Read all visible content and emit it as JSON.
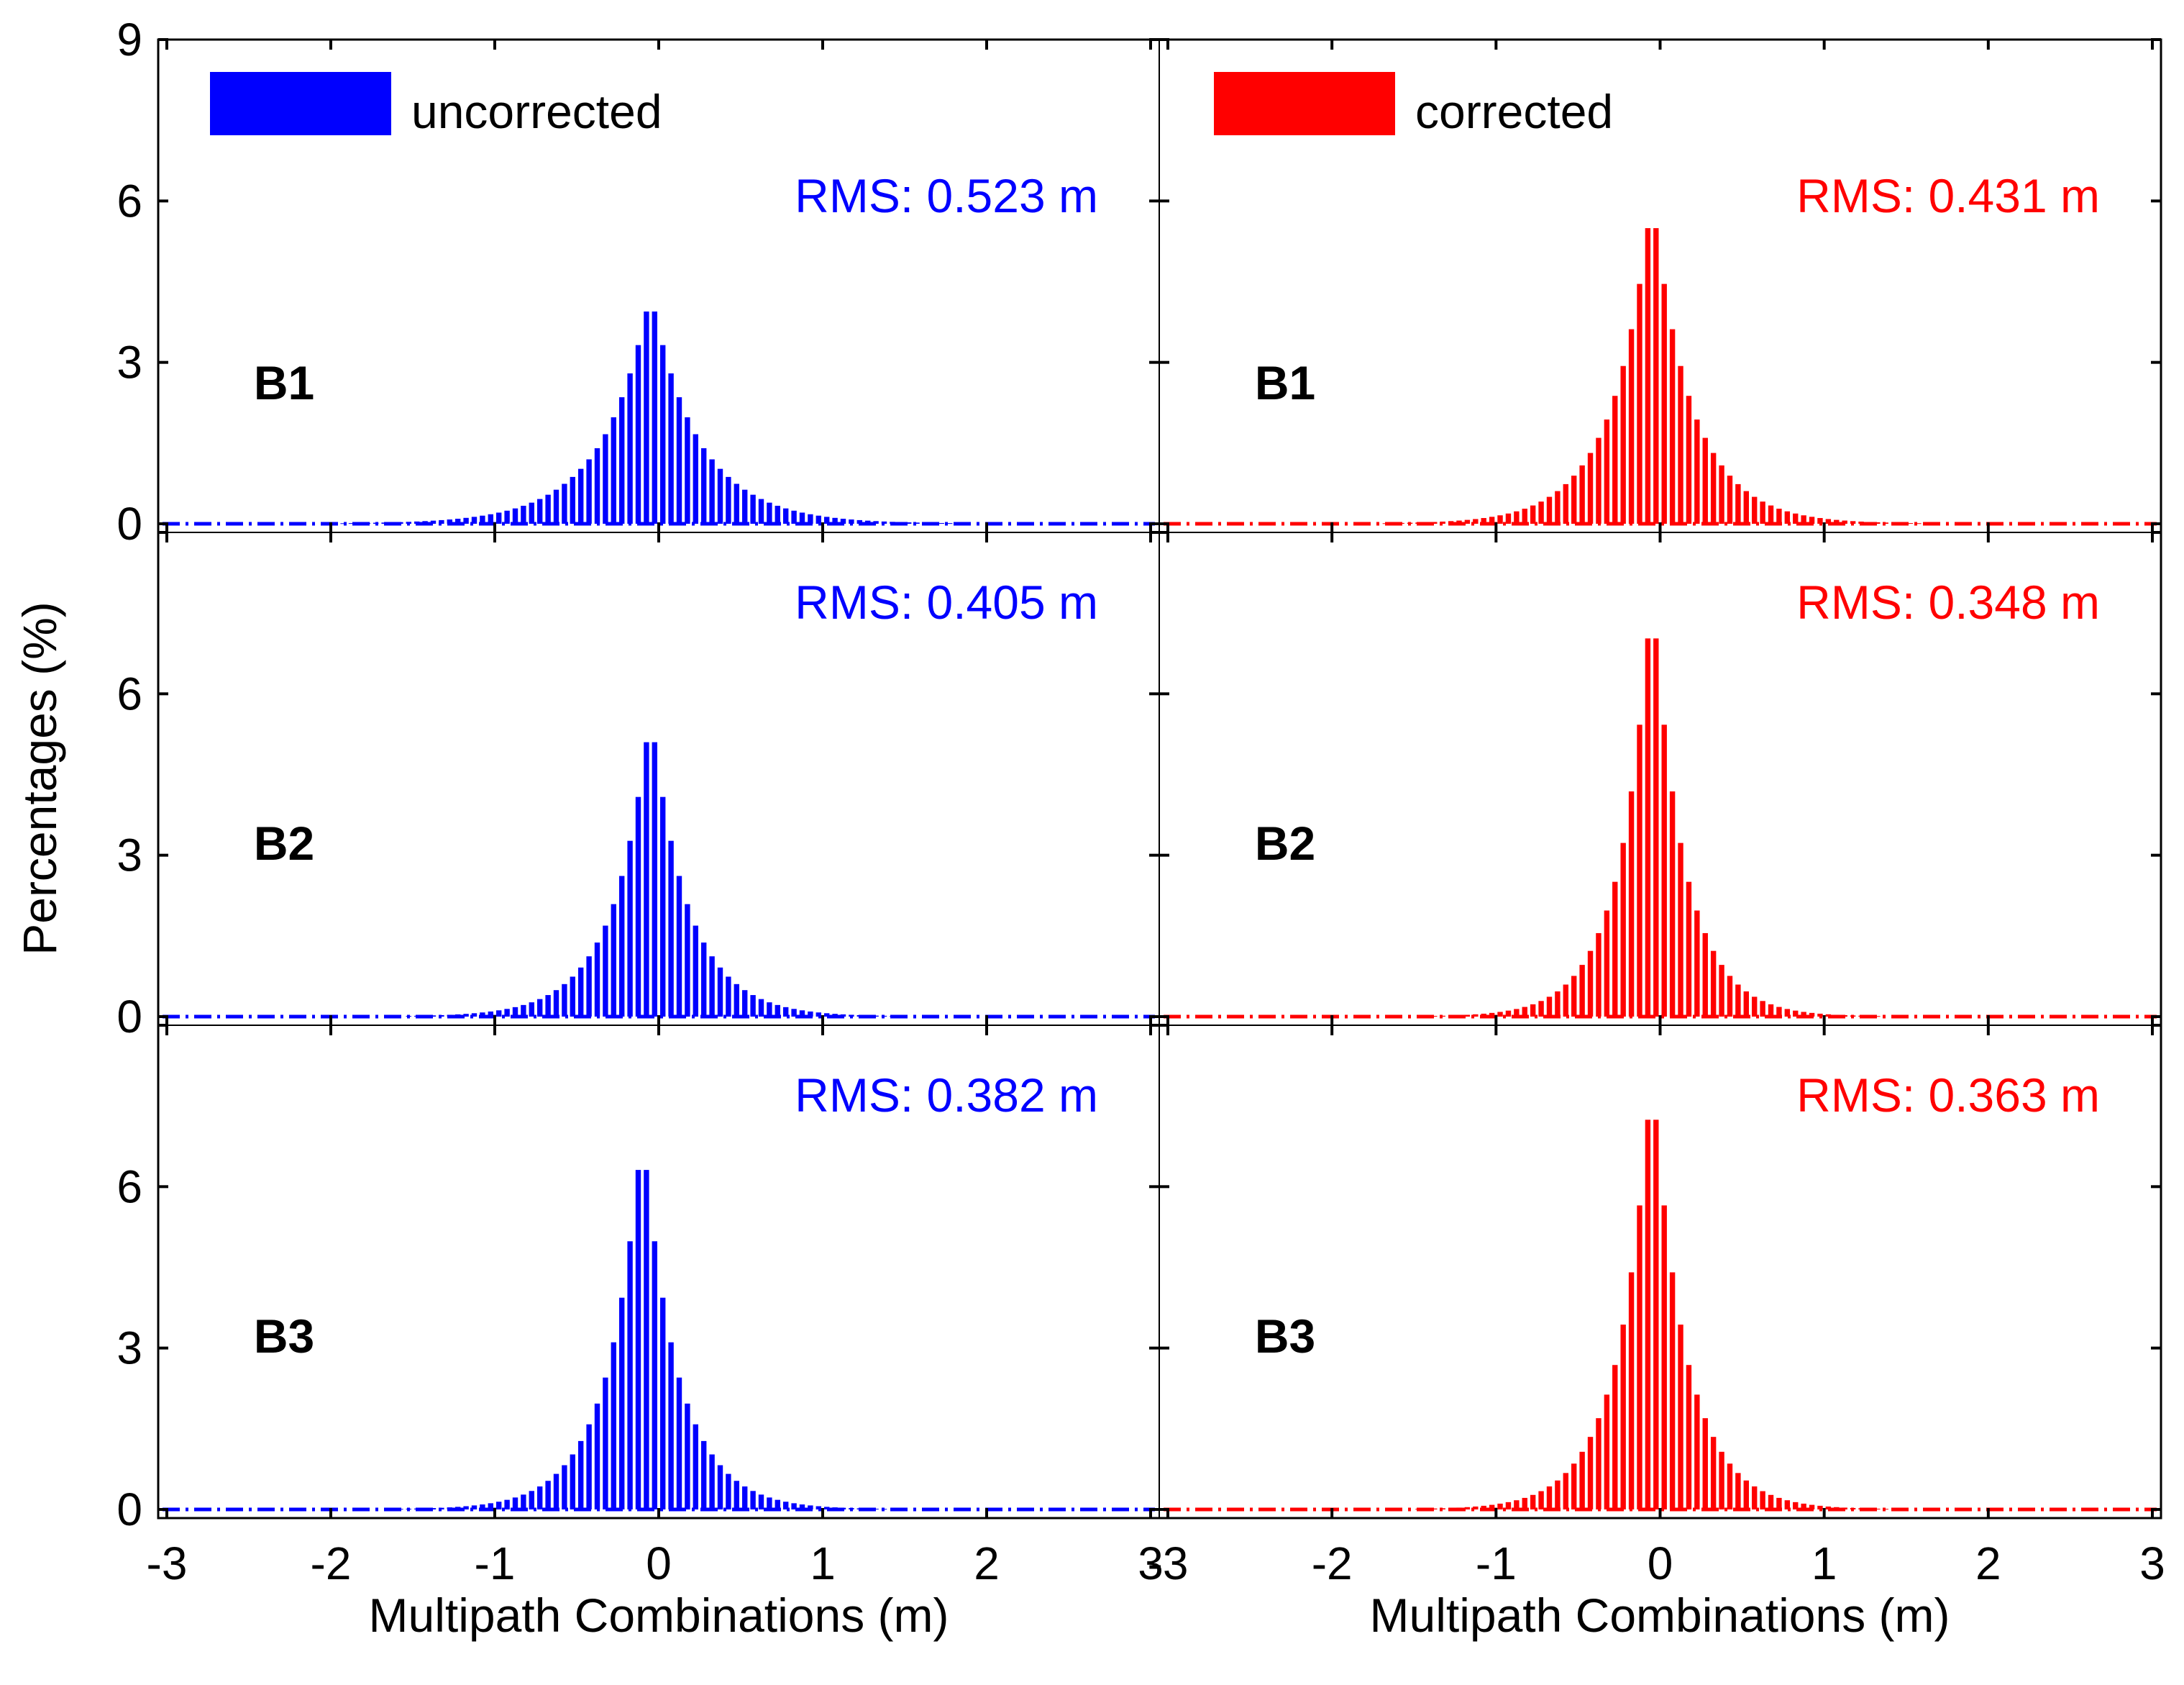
{
  "chart_data": {
    "type": "bar",
    "layout": "3 rows x 2 columns of histograms (rows: B1, B2, B3; columns: uncorrected, corrected)",
    "xlabel": "Multipath Combinations (m)",
    "ylabel": "Percentages (%)",
    "xlim": [
      -3,
      3
    ],
    "ylim": [
      0,
      9
    ],
    "x_ticks": [
      "-3",
      "-2",
      "-1",
      "0",
      "1",
      "2",
      "3"
    ],
    "y_ticks": [
      "0",
      "3",
      "6",
      "9"
    ],
    "legend": [
      {
        "label": "uncorrected",
        "color": "#0000ff"
      },
      {
        "label": "corrected",
        "color": "#ff0000"
      }
    ],
    "bin_width_m": 0.05,
    "columns": [
      {
        "name": "uncorrected",
        "color": "#0000ff"
      },
      {
        "name": "corrected",
        "color": "#ff0000"
      }
    ],
    "panels": [
      {
        "band": "B1",
        "series": "uncorrected",
        "rms_label": "RMS: 0.523 m",
        "rms_m": 0.523,
        "peak_center_m": -0.05,
        "peak_percent": 4.3
      },
      {
        "band": "B1",
        "series": "corrected",
        "rms_label": "RMS: 0.431 m",
        "rms_m": 0.431,
        "peak_center_m": -0.05,
        "peak_percent": 6.1
      },
      {
        "band": "B2",
        "series": "uncorrected",
        "rms_label": "RMS: 0.405 m",
        "rms_m": 0.405,
        "peak_center_m": -0.05,
        "peak_percent": 5.7
      },
      {
        "band": "B2",
        "series": "corrected",
        "rms_label": "RMS: 0.348 m",
        "rms_m": 0.348,
        "peak_center_m": -0.05,
        "peak_percent": 8.0
      },
      {
        "band": "B3",
        "series": "uncorrected",
        "rms_label": "RMS: 0.382 m",
        "rms_m": 0.382,
        "peak_center_m": -0.1,
        "peak_percent": 7.1
      },
      {
        "band": "B3",
        "series": "corrected",
        "rms_label": "RMS: 0.363 m",
        "rms_m": 0.363,
        "peak_center_m": -0.05,
        "peak_percent": 8.2
      }
    ]
  }
}
